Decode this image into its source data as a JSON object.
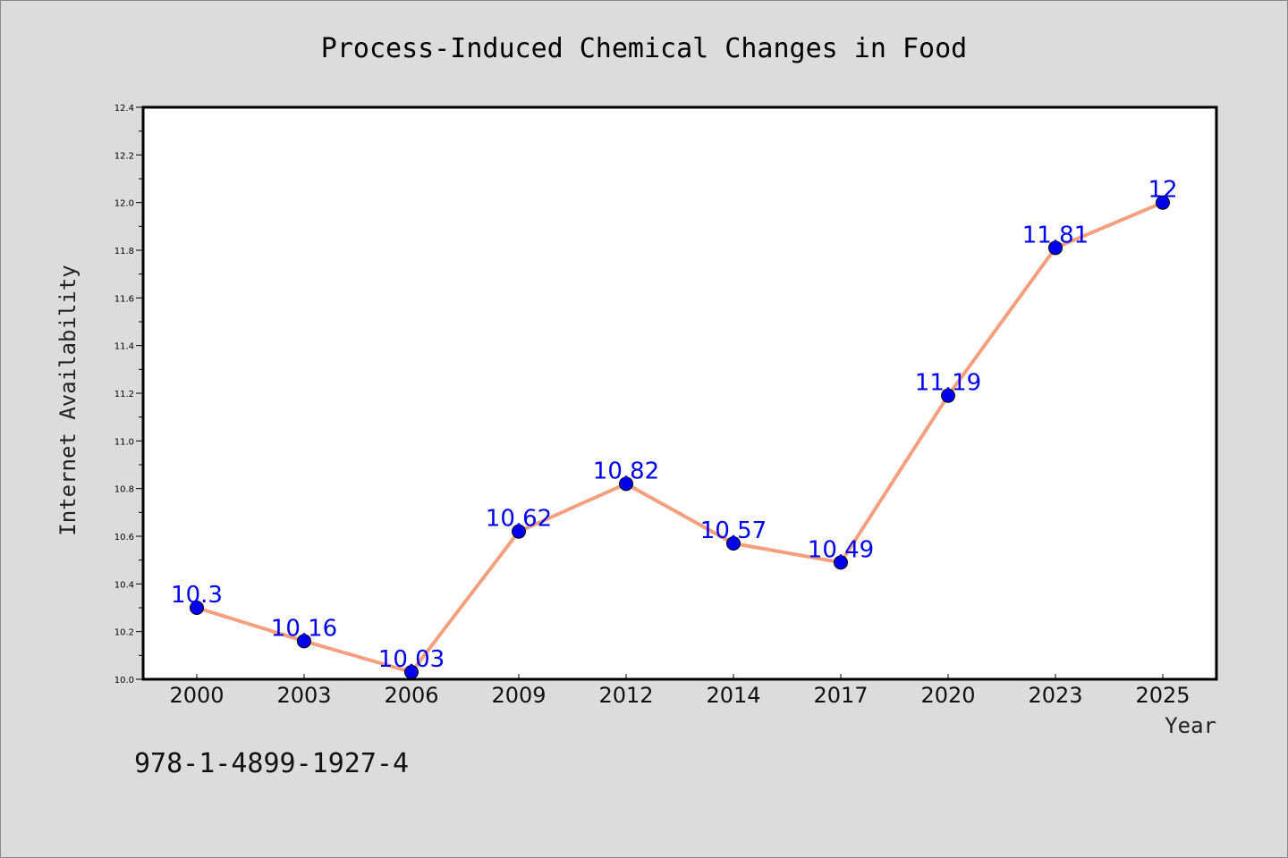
{
  "chart_data": {
    "type": "line",
    "title": "Process-Induced Chemical Changes in Food",
    "xlabel": "Year",
    "ylabel": "Internet Availability",
    "categories": [
      "2000",
      "2003",
      "2006",
      "2009",
      "2012",
      "2014",
      "2017",
      "2020",
      "2023",
      "2025"
    ],
    "series": [
      {
        "values": [
          10.3,
          10.16,
          10.03,
          10.62,
          10.82,
          10.57,
          10.49,
          11.19,
          11.81,
          12
        ]
      }
    ],
    "data_labels": [
      "10.3",
      "10.16",
      "10.03",
      "10.62",
      "10.82",
      "10.57",
      "10.49",
      "11.19",
      "11.81",
      "12"
    ],
    "ylim": [
      10.0,
      12.4
    ],
    "yticks": [
      "10.0",
      "10.2",
      "10.4",
      "10.6",
      "10.8",
      "11.0",
      "11.2",
      "11.4",
      "11.6",
      "11.8",
      "12.0",
      "12.2",
      "12.4"
    ],
    "grid": false,
    "legend": "none",
    "colors": {
      "line": "#f4a07e",
      "marker": "#0000ee",
      "label": "#0000ee",
      "background": "#dcdcdc",
      "plot_background": "#ffffff"
    }
  },
  "footer": {
    "isbn": "978-1-4899-1927-4"
  }
}
